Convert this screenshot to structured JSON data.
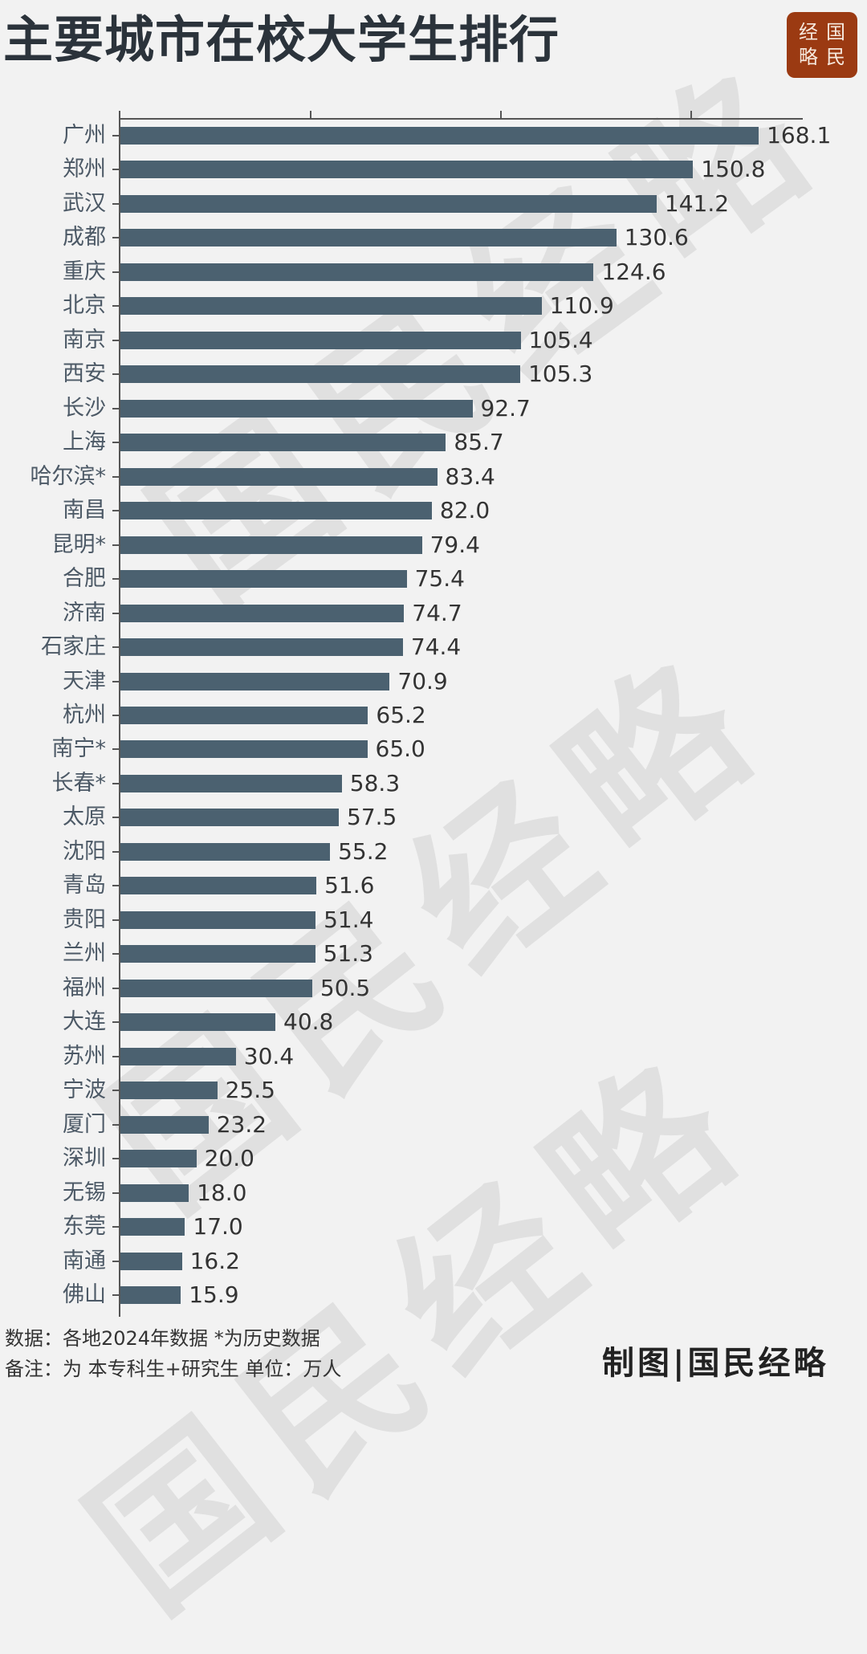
{
  "header": {
    "title": "主要城市在校大学生排行",
    "logo_chars": [
      "经",
      "国",
      "略",
      "民"
    ]
  },
  "watermark": {
    "text": "国民经略"
  },
  "colors": {
    "bar": "#4b6170",
    "background": "#f2f2f2",
    "logo_bg": "#9b3a12"
  },
  "chart_data": {
    "type": "bar",
    "orientation": "horizontal",
    "title": "主要城市在校大学生排行",
    "xlabel": "",
    "ylabel": "",
    "unit": "万人",
    "xlim": [
      0,
      180
    ],
    "x_ticks": [
      0,
      50,
      100,
      150
    ],
    "x_tick_labels_shown": false,
    "grid": false,
    "legend": null,
    "categories": [
      "广州",
      "郑州",
      "武汉",
      "成都",
      "重庆",
      "北京",
      "南京",
      "西安",
      "长沙",
      "上海",
      "哈尔滨*",
      "南昌",
      "昆明*",
      "合肥",
      "济南",
      "石家庄",
      "天津",
      "杭州",
      "南宁*",
      "长春*",
      "太原",
      "沈阳",
      "青岛",
      "贵阳",
      "兰州",
      "福州",
      "大连",
      "苏州",
      "宁波",
      "厦门",
      "深圳",
      "无锡",
      "东莞",
      "南通",
      "佛山"
    ],
    "values": [
      168.1,
      150.8,
      141.2,
      130.6,
      124.6,
      110.9,
      105.4,
      105.3,
      92.7,
      85.7,
      83.4,
      82.0,
      79.4,
      75.4,
      74.7,
      74.4,
      70.9,
      65.2,
      65.0,
      58.3,
      57.5,
      55.2,
      51.6,
      51.4,
      51.3,
      50.5,
      40.8,
      30.4,
      25.5,
      23.2,
      20.0,
      18.0,
      17.0,
      16.2,
      15.9
    ],
    "value_labels": [
      "168.1",
      "150.8",
      "141.2",
      "130.6",
      "124.6",
      "110.9",
      "105.4",
      "105.3",
      "92.7",
      "85.7",
      "83.4",
      "82.0",
      "79.4",
      "75.4",
      "74.7",
      "74.4",
      "70.9",
      "65.2",
      "65.0",
      "58.3",
      "57.5",
      "55.2",
      "51.6",
      "51.4",
      "51.3",
      "50.5",
      "40.8",
      "30.4",
      "25.5",
      "23.2",
      "20.0",
      "18.0",
      "17.0",
      "16.2",
      "15.9"
    ],
    "annotations": [
      "*为历史数据"
    ]
  },
  "footer": {
    "source": "数据：各地2024年数据 *为历史数据",
    "note": "备注：为 本专科生+研究生   单位：万人",
    "credit": "制图|国民经略"
  }
}
